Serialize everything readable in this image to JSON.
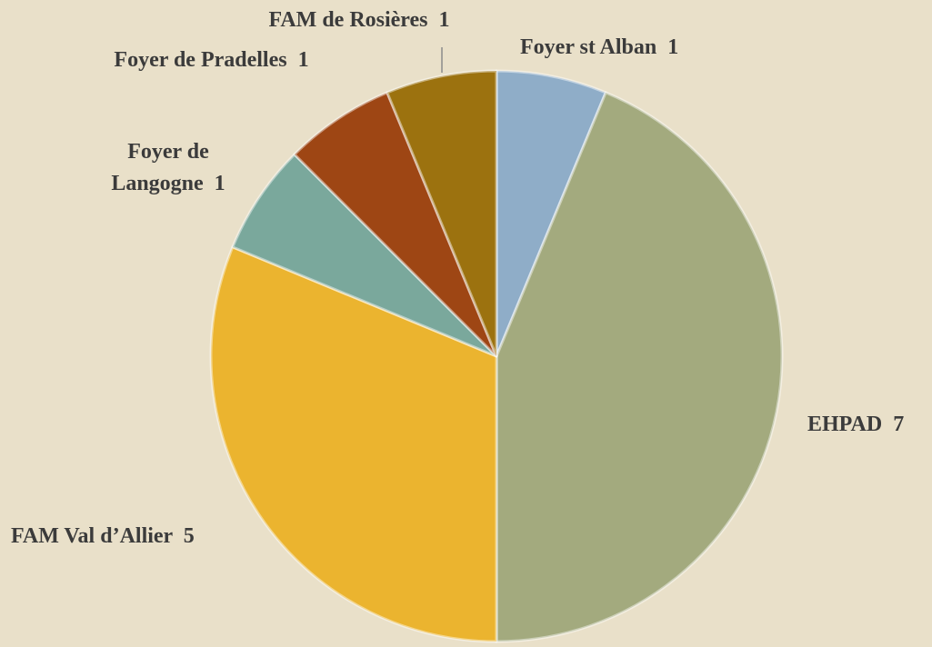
{
  "chart_data": {
    "type": "pie",
    "categories": [
      "Foyer st Alban",
      "EHPAD",
      "FAM Val d’Allier",
      "Foyer de Langogne",
      "Foyer de Pradelles",
      "FAM de Rosières"
    ],
    "values": [
      1,
      7,
      5,
      1,
      1,
      1
    ],
    "colors": [
      "#8fadc8",
      "#a3aa7e",
      "#ebb42f",
      "#7aa89c",
      "#9e4614",
      "#9c720f"
    ]
  }
}
